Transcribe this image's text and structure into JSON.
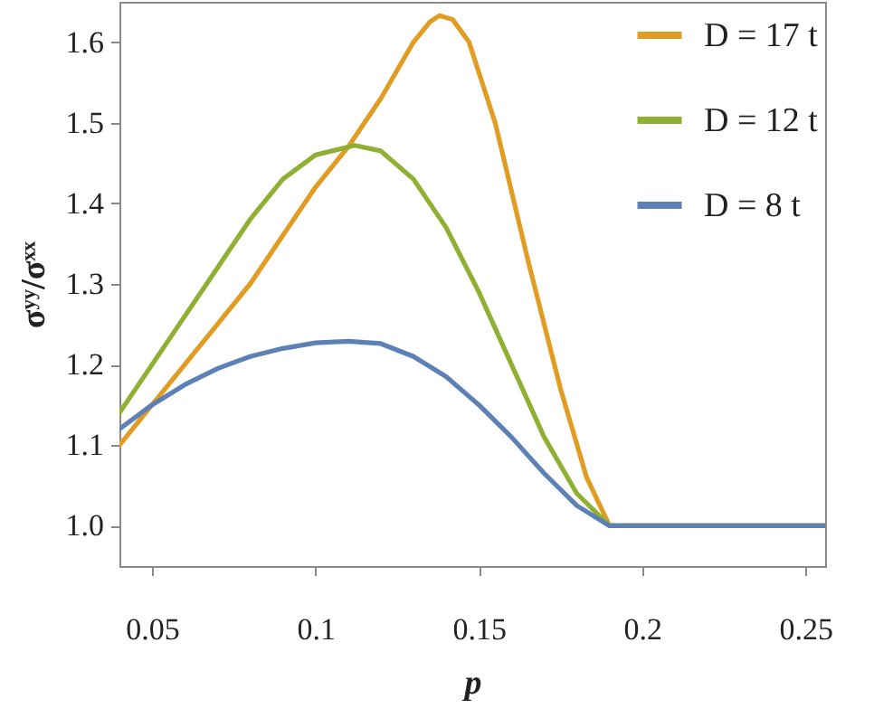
{
  "chart_data": {
    "type": "line",
    "xlabel": "p",
    "ylabel": "σʸʸ/σˣˣ",
    "xlim": [
      0.04,
      0.256
    ],
    "xticks": [
      0.05,
      0.1,
      0.15,
      0.2,
      0.25
    ],
    "ylim": [
      0.95,
      1.65
    ],
    "yticks": [
      {
        "value": 1,
        "label": "1.0"
      },
      1.1,
      1.2,
      1.3,
      1.4,
      1.5,
      1.6
    ],
    "grid": false,
    "legend": "top right",
    "marker": "none",
    "line_style": "solid",
    "series": [
      {
        "name": "D = 17 t",
        "color": "#e19c24",
        "x": [
          0.04,
          0.05,
          0.06,
          0.07,
          0.08,
          0.09,
          0.1,
          0.11,
          0.12,
          0.13,
          0.135,
          0.138,
          0.142,
          0.147,
          0.155,
          0.165,
          0.175,
          0.183,
          0.19,
          0.256
        ],
        "values": [
          1.1,
          1.15,
          1.2,
          1.25,
          1.3,
          1.36,
          1.42,
          1.47,
          1.53,
          1.6,
          1.625,
          1.633,
          1.628,
          1.6,
          1.5,
          1.33,
          1.17,
          1.06,
          1.0,
          1.0
        ]
      },
      {
        "name": "D = 12 t",
        "color": "#8fb032",
        "x": [
          0.04,
          0.05,
          0.06,
          0.07,
          0.08,
          0.09,
          0.1,
          0.112,
          0.12,
          0.13,
          0.14,
          0.15,
          0.16,
          0.17,
          0.18,
          0.19,
          0.256
        ],
        "values": [
          1.14,
          1.2,
          1.26,
          1.32,
          1.38,
          1.43,
          1.46,
          1.472,
          1.465,
          1.43,
          1.37,
          1.29,
          1.2,
          1.11,
          1.04,
          1.0,
          1.0
        ]
      },
      {
        "name": "D = 8 t",
        "color": "#5e81b5",
        "x": [
          0.04,
          0.05,
          0.06,
          0.07,
          0.08,
          0.09,
          0.1,
          0.11,
          0.12,
          0.13,
          0.14,
          0.15,
          0.16,
          0.17,
          0.18,
          0.19,
          0.256
        ],
        "values": [
          1.12,
          1.15,
          1.175,
          1.195,
          1.21,
          1.22,
          1.227,
          1.229,
          1.226,
          1.21,
          1.185,
          1.15,
          1.11,
          1.065,
          1.025,
          1.0,
          1.0
        ]
      }
    ]
  }
}
